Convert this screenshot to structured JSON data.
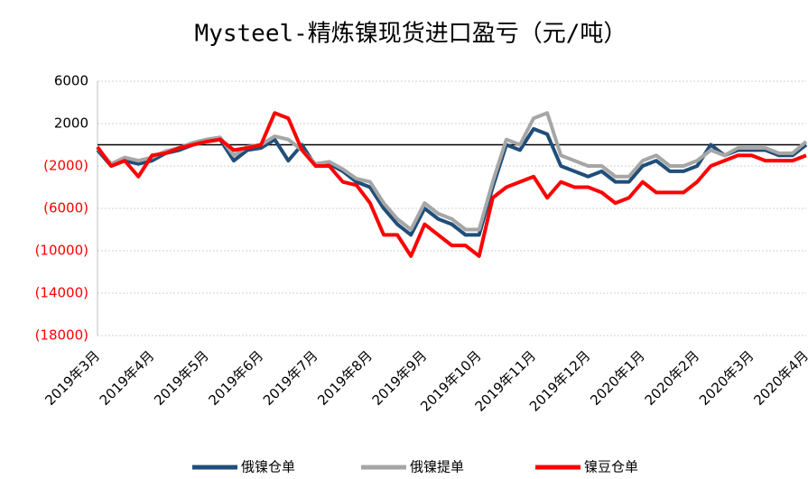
{
  "chart_data": {
    "type": "line",
    "title": "Mysteel-精炼镍现货进口盈亏（元/吨）",
    "x": [
      "2019年3月",
      "2019年3月",
      "2019年3月",
      "2019年3月",
      "2019年4月",
      "2019年4月",
      "2019年4月",
      "2019年4月",
      "2019年5月",
      "2019年5月",
      "2019年5月",
      "2019年5月",
      "2019年6月",
      "2019年6月",
      "2019年6月",
      "2019年6月",
      "2019年7月",
      "2019年7月",
      "2019年7月",
      "2019年7月",
      "2019年8月",
      "2019年8月",
      "2019年8月",
      "2019年8月",
      "2019年9月",
      "2019年9月",
      "2019年9月",
      "2019年9月",
      "2019年10月",
      "2019年10月",
      "2019年10月",
      "2019年10月",
      "2019年11月",
      "2019年11月",
      "2019年11月",
      "2019年11月",
      "2019年12月",
      "2019年12月",
      "2019年12月",
      "2019年12月",
      "2020年1月",
      "2020年1月",
      "2020年1月",
      "2020年1月",
      "2020年2月",
      "2020年2月",
      "2020年2月",
      "2020年2月",
      "2020年3月",
      "2020年3月",
      "2020年3月",
      "2020年3月",
      "2020年4月"
    ],
    "series": [
      {
        "name": "俄镍仓单",
        "color": "#1f4e79",
        "values": [
          -500,
          -2000,
          -1500,
          -1800,
          -1500,
          -800,
          -500,
          0,
          300,
          500,
          -1500,
          -500,
          -300,
          500,
          -1500,
          0,
          -2000,
          -1800,
          -2500,
          -3500,
          -4000,
          -6000,
          -7500,
          -8500,
          -6000,
          -7000,
          -7500,
          -8500,
          -8500,
          -4000,
          0,
          -500,
          1500,
          1000,
          -2000,
          -2500,
          -3000,
          -2500,
          -3500,
          -3500,
          -2000,
          -1500,
          -2500,
          -2500,
          -2000,
          0,
          -1000,
          -500,
          -500,
          -500,
          -1000,
          -1000,
          0
        ]
      },
      {
        "name": "俄镍提单",
        "color": "#a6a6a6",
        "values": [
          -300,
          -1800,
          -1200,
          -1500,
          -1200,
          -600,
          -300,
          200,
          500,
          700,
          -1000,
          -200,
          0,
          800,
          500,
          -500,
          -1800,
          -1600,
          -2300,
          -3200,
          -3500,
          -5500,
          -7000,
          -8000,
          -5500,
          -6500,
          -7000,
          -8000,
          -8000,
          -3500,
          500,
          0,
          2500,
          3000,
          -1000,
          -1500,
          -2000,
          -2000,
          -3000,
          -3000,
          -1500,
          -1000,
          -2000,
          -2000,
          -1500,
          -500,
          -1000,
          -300,
          -300,
          -300,
          -800,
          -800,
          300
        ]
      },
      {
        "name": "镍豆仓单",
        "color": "#ff0000",
        "values": [
          -200,
          -2000,
          -1500,
          -3000,
          -1000,
          -800,
          -300,
          0,
          300,
          500,
          -500,
          -300,
          0,
          3000,
          2500,
          -500,
          -2000,
          -2000,
          -3500,
          -3800,
          -5500,
          -8500,
          -8500,
          -10500,
          -7500,
          -8500,
          -9500,
          -9500,
          -10500,
          -5000,
          -4000,
          -3500,
          -3000,
          -5000,
          -3500,
          -4000,
          -4000,
          -4500,
          -5500,
          -5000,
          -3500,
          -4500,
          -4500,
          -4500,
          -3500,
          -2000,
          -1500,
          -1000,
          -1000,
          -1500,
          -1500,
          -1500,
          -1000
        ]
      }
    ],
    "ylim": [
      -18000,
      6000
    ],
    "yticks": [
      6000,
      2000,
      {
        "value": -2000,
        "label": "(2000)"
      },
      {
        "value": -6000,
        "label": "(6000)"
      },
      {
        "value": -10000,
        "label": "(10000)"
      },
      {
        "value": -14000,
        "label": "(14000)"
      },
      {
        "value": -18000,
        "label": "(18000)"
      }
    ],
    "negative_tick_color": "#ff0000",
    "grid": true,
    "legend": "bottom"
  }
}
